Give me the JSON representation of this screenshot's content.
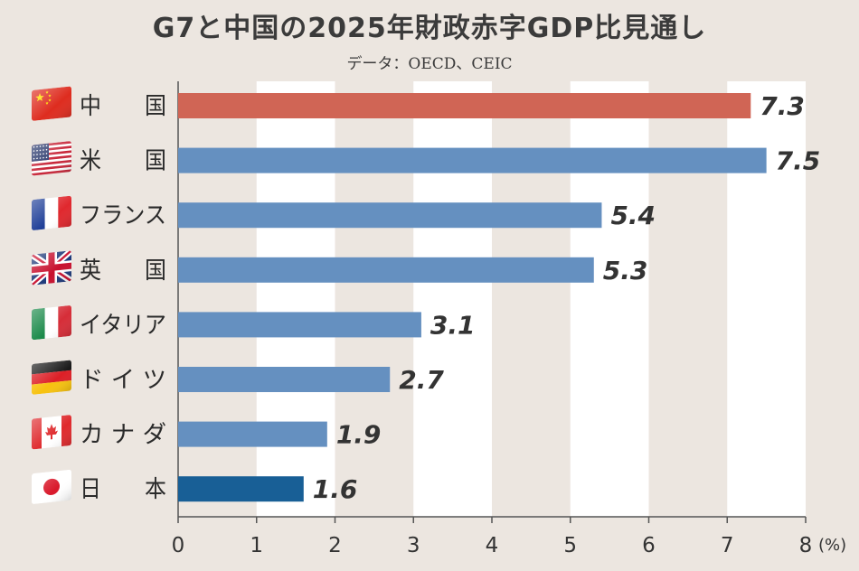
{
  "title": "G7と中国の2025年財政赤字GDP比見通し",
  "source": "データ：OECD、CEIC",
  "chart_data": {
    "type": "bar",
    "orientation": "horizontal",
    "title": "G7と中国の2025年財政赤字GDP比見通し",
    "categories": [
      "中　　国",
      "米　　国",
      "フランス",
      "英　　国",
      "イタリア",
      "ド イ ツ",
      "カ ナ ダ",
      "日　　本"
    ],
    "values": [
      7.3,
      7.5,
      5.4,
      5.3,
      3.1,
      2.7,
      1.9,
      1.6
    ],
    "value_labels": [
      "7.3",
      "7.5",
      "5.4",
      "5.3",
      "3.1",
      "2.7",
      "1.9",
      "1.6"
    ],
    "flags": [
      "china-flag-icon",
      "usa-flag-icon",
      "france-flag-icon",
      "uk-flag-icon",
      "italy-flag-icon",
      "germany-flag-icon",
      "canada-flag-icon",
      "japan-flag-icon"
    ],
    "colors": [
      "#d06555",
      "#6590c0",
      "#6590c0",
      "#6590c0",
      "#6590c0",
      "#6590c0",
      "#6590c0",
      "#185f96"
    ],
    "xlim": [
      0,
      8
    ],
    "xticks": [
      "0",
      "1",
      "2",
      "3",
      "4",
      "5",
      "6",
      "7",
      "8"
    ],
    "unit_label": "(%)",
    "grid": "alternating vertical bands"
  }
}
